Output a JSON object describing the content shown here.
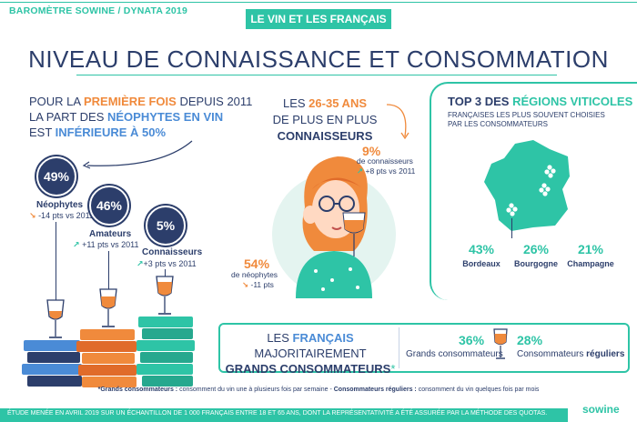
{
  "header": {
    "barometre": "BAROMÈTRE SOWINE / DYNATA 2019",
    "banner": "LE VIN ET LES FRANÇAIS",
    "title": "NIVEAU DE CONNAISSANCE ET CONSOMMATION"
  },
  "left": {
    "line1_a": "POUR LA ",
    "line1_b": "PREMIÈRE FOIS",
    "line1_c": " DEPUIS 2011",
    "line2_a": "LA PART DES ",
    "line2_b": "NÉOPHYTES EN VIN",
    "line3_a": "EST ",
    "line3_b": "INFÉRIEURE À 50%",
    "stats": [
      {
        "pct": "49%",
        "label": "Néophytes",
        "arrow": "↘",
        "change": "-14 pts vs 2011"
      },
      {
        "pct": "46%",
        "label": "Amateurs",
        "arrow": "↗",
        "change": "+11 pts vs 2011"
      },
      {
        "pct": "5%",
        "label": "Connaisseurs",
        "arrow": "↗",
        "change": "+3 pts vs 2011"
      }
    ]
  },
  "middle": {
    "line1_a": "LES ",
    "line1_b": "26-35 ANS",
    "line2": "DE PLUS EN PLUS",
    "line3": "CONNAISSEURS",
    "conn_pct": "9%",
    "conn_label": "de connaisseurs",
    "conn_arrow": "↗",
    "conn_change": "+8 pts vs 2011",
    "neo_pct": "54%",
    "neo_label": "de néophytes",
    "neo_arrow": "↘",
    "neo_change": "-11 pts"
  },
  "right": {
    "title_a": "TOP 3 DES ",
    "title_b": "RÉGIONS VITICOLES",
    "sub1": "FRANÇAISES LES PLUS SOUVENT CHOISIES",
    "sub2": "PAR LES CONSOMMATEURS",
    "regions": [
      {
        "pct": "43%",
        "name": "Bordeaux"
      },
      {
        "pct": "26%",
        "name": "Bourgogne"
      },
      {
        "pct": "21%",
        "name": "Champagne"
      }
    ]
  },
  "box": {
    "l1_a": "LES ",
    "l1_b": "FRANÇAIS",
    "l1_c": " MAJORITAIREMENT",
    "l2": "GRANDS CONSOMMATEURS",
    "l2_star": "*",
    "grands_pct": "36%",
    "grands_label": "Grands consommateurs",
    "reg_pct": "28%",
    "reg_label_a": "Consommateurs ",
    "reg_label_b": "réguliers"
  },
  "footnote": {
    "a_b": "*Grands consommateurs :",
    "a": " consomment du vin une à plusieurs fois par semaine - ",
    "b_b": "Consommateurs réguliers :",
    "b": " consomment du vin quelques fois par mois"
  },
  "method": "ÉTUDE MENÉE EN AVRIL 2019 SUR UN ÉCHANTILLON DE 1 000 FRANÇAIS ENTRE 18 ET 65 ANS, DONT LA REPRÉSENTATIVITÉ A ÉTÉ ASSURÉE PAR LA MÉTHODE DES QUOTAS.",
  "logo": "sowine"
}
